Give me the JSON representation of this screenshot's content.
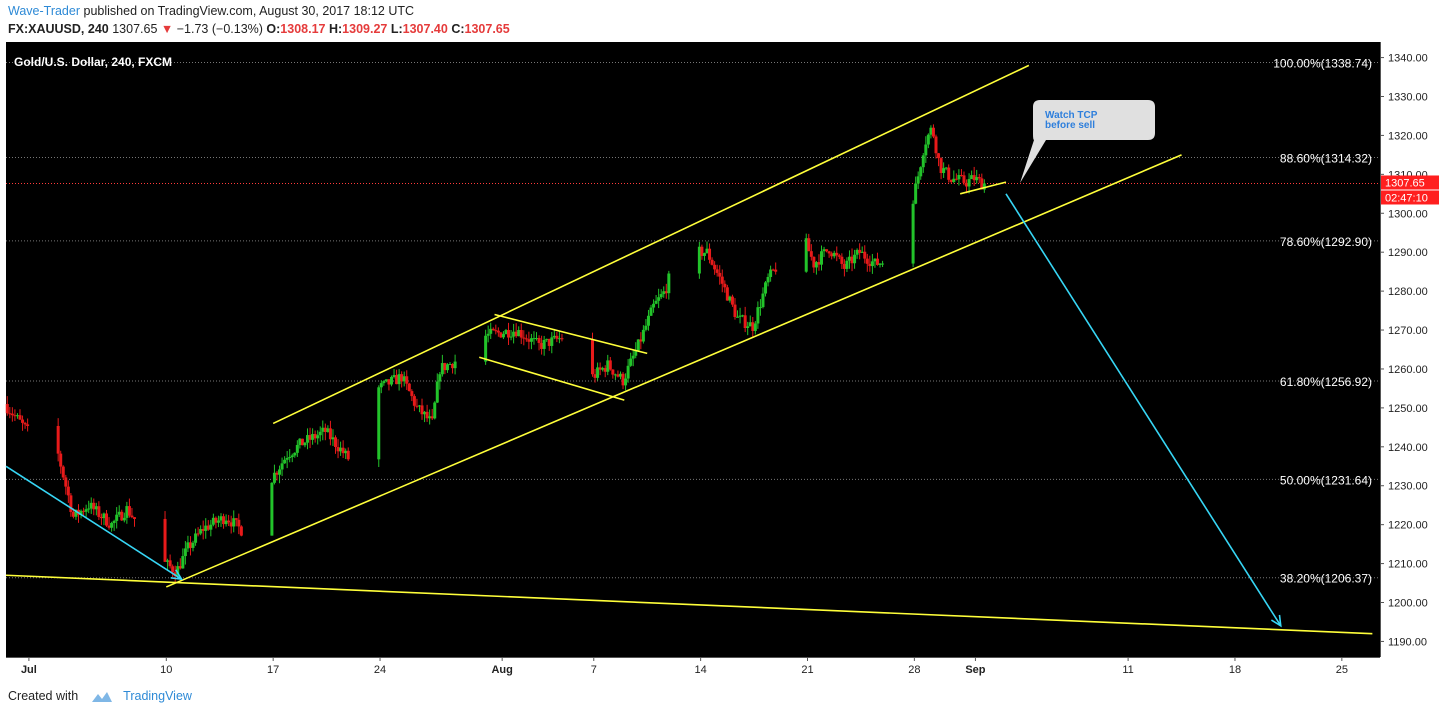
{
  "header": {
    "author": "Wave-Trader",
    "published_text": "published on TradingView.com, August 30, 2017 18:12 UTC",
    "symbol": "FX:XAUUSD, 240",
    "last": "1307.65",
    "change_arrow": "▼",
    "change": "−1.73 (−0.13%)",
    "o_label": "O:",
    "o_value": "1308.17",
    "h_label": "H:",
    "h_value": "1309.27",
    "l_label": "L:",
    "l_value": "1307.40",
    "c_label": "C:",
    "c_value": "1307.65"
  },
  "footer": {
    "created_with": "Created with",
    "brand": "TradingView"
  },
  "chart_data": {
    "type": "candlestick",
    "title": "Gold/U.S. Dollar, 240, FXCM",
    "background": "#000000",
    "colors": {
      "up": "#22c32a",
      "down": "#e81a1a",
      "trendline": "#ffff3a",
      "arrow": "#37d6f5",
      "fib_line": "#777777",
      "price_line": "#ff3b3b",
      "price_tag": "#ff1f1f"
    },
    "y_axis": {
      "range": [
        1186,
        1344
      ],
      "ticks": [
        1190,
        1200,
        1210,
        1220,
        1230,
        1240,
        1250,
        1260,
        1270,
        1280,
        1290,
        1300,
        1310,
        1320,
        1330,
        1340
      ],
      "tick_labels": [
        "1190.00",
        "1200.00",
        "1210.00",
        "1220.00",
        "1230.00",
        "1240.00",
        "1250.00",
        "1260.00",
        "1270.00",
        "1280.00",
        "1290.00",
        "1300.00",
        "1310.00",
        "1320.00",
        "1330.00",
        "1340.00"
      ],
      "position": "right"
    },
    "x_axis": {
      "range": [
        "2017-06-29T12:00",
        "2017-09-27T12:00"
      ],
      "ticks": [
        "2017-07-01",
        "2017-07-10",
        "2017-07-17",
        "2017-07-24",
        "2017-08-01",
        "2017-08-07",
        "2017-08-14",
        "2017-08-21",
        "2017-08-28",
        "2017-09-01",
        "2017-09-11",
        "2017-09-18",
        "2017-09-25"
      ],
      "tick_labels": [
        "Jul",
        "10",
        "17",
        "24",
        "Aug",
        "7",
        "14",
        "21",
        "28",
        "Sep",
        "11",
        "18",
        "25"
      ],
      "bold_labels": [
        "Jul",
        "Aug",
        "Sep"
      ]
    },
    "fib_levels": [
      {
        "label": "100.00%(1338.74)",
        "value": 1338.74
      },
      {
        "label": "88.60%(1314.32)",
        "value": 1314.32
      },
      {
        "label": "78.60%(1292.90)",
        "value": 1292.9
      },
      {
        "label": "61.80%(1256.92)",
        "value": 1256.92
      },
      {
        "label": "50.00%(1231.64)",
        "value": 1231.64
      },
      {
        "label": "38.20%(1206.37)",
        "value": 1206.37
      }
    ],
    "last_price": {
      "value": 1307.65,
      "label": "1307.65",
      "countdown": "02:47:10"
    },
    "price_path": [
      {
        "x": "2017-06-29T12:00",
        "y": 1251
      },
      {
        "x": "2017-07-01T00:00",
        "y": 1244
      },
      {
        "x": "2017-07-03T00:00",
        "y": 1238
      },
      {
        "x": "2017-07-04T00:00",
        "y": 1222
      },
      {
        "x": "2017-07-05T00:00",
        "y": 1225
      },
      {
        "x": "2017-07-06T12:00",
        "y": 1220
      },
      {
        "x": "2017-07-07T12:00",
        "y": 1224
      },
      {
        "x": "2017-07-08T12:00",
        "y": 1219
      },
      {
        "x": "2017-07-10T00:00",
        "y": 1210
      },
      {
        "x": "2017-07-10T18:00",
        "y": 1208
      },
      {
        "x": "2017-07-11T12:00",
        "y": 1214
      },
      {
        "x": "2017-07-12T12:00",
        "y": 1219
      },
      {
        "x": "2017-07-14T00:00",
        "y": 1222
      },
      {
        "x": "2017-07-15T12:00",
        "y": 1217
      },
      {
        "x": "2017-07-16T00:00",
        "y": 1228
      },
      {
        "x": "2017-07-17T00:00",
        "y": 1232
      },
      {
        "x": "2017-07-18T00:00",
        "y": 1238
      },
      {
        "x": "2017-07-19T00:00",
        "y": 1241
      },
      {
        "x": "2017-07-20T12:00",
        "y": 1244
      },
      {
        "x": "2017-07-22T00:00",
        "y": 1237
      },
      {
        "x": "2017-07-23T00:00",
        "y": 1250
      },
      {
        "x": "2017-07-24T00:00",
        "y": 1255
      },
      {
        "x": "2017-07-25T12:00",
        "y": 1258
      },
      {
        "x": "2017-07-26T12:00",
        "y": 1250
      },
      {
        "x": "2017-07-27T12:00",
        "y": 1246
      },
      {
        "x": "2017-07-28T00:00",
        "y": 1260
      },
      {
        "x": "2017-07-29T12:00",
        "y": 1263
      },
      {
        "x": "2017-07-30T12:00",
        "y": 1268
      },
      {
        "x": "2017-07-31T12:00",
        "y": 1269
      },
      {
        "x": "2017-08-02T00:00",
        "y": 1270
      },
      {
        "x": "2017-08-03T12:00",
        "y": 1266
      },
      {
        "x": "2017-08-05T00:00",
        "y": 1268
      },
      {
        "x": "2017-08-06T00:00",
        "y": 1259
      },
      {
        "x": "2017-08-07T00:00",
        "y": 1258
      },
      {
        "x": "2017-08-08T00:00",
        "y": 1261
      },
      {
        "x": "2017-08-09T00:00",
        "y": 1257
      },
      {
        "x": "2017-08-10T00:00",
        "y": 1266
      },
      {
        "x": "2017-08-11T00:00",
        "y": 1276
      },
      {
        "x": "2017-08-11T18:00",
        "y": 1280
      },
      {
        "x": "2017-08-12T12:00",
        "y": 1289
      },
      {
        "x": "2017-08-13T12:00",
        "y": 1290
      },
      {
        "x": "2017-08-14T12:00",
        "y": 1290
      },
      {
        "x": "2017-08-15T12:00",
        "y": 1282
      },
      {
        "x": "2017-08-16T12:00",
        "y": 1273
      },
      {
        "x": "2017-08-17T12:00",
        "y": 1271
      },
      {
        "x": "2017-08-18T12:00",
        "y": 1283
      },
      {
        "x": "2017-08-19T12:00",
        "y": 1289
      },
      {
        "x": "2017-08-20T12:00",
        "y": 1297
      },
      {
        "x": "2017-08-21T12:00",
        "y": 1287
      },
      {
        "x": "2017-08-22T12:00",
        "y": 1291
      },
      {
        "x": "2017-08-23T12:00",
        "y": 1286
      },
      {
        "x": "2017-08-24T12:00",
        "y": 1290
      },
      {
        "x": "2017-08-25T12:00",
        "y": 1287
      },
      {
        "x": "2017-08-26T12:00",
        "y": 1288
      },
      {
        "x": "2017-08-27T12:00",
        "y": 1296
      },
      {
        "x": "2017-08-28T06:00",
        "y": 1308
      },
      {
        "x": "2017-08-28T18:00",
        "y": 1318
      },
      {
        "x": "2017-08-29T06:00",
        "y": 1322
      },
      {
        "x": "2017-08-29T18:00",
        "y": 1312
      },
      {
        "x": "2017-08-30T12:00",
        "y": 1309
      },
      {
        "x": "2017-08-31T12:00",
        "y": 1308
      },
      {
        "x": "2017-09-01T00:00",
        "y": 1309
      },
      {
        "x": "2017-09-01T12:00",
        "y": 1307.65
      }
    ],
    "trendlines": [
      {
        "name": "channel-upper",
        "from": {
          "x": "2017-07-17T00:00",
          "y": 1246
        },
        "to": {
          "x": "2017-09-04T12:00",
          "y": 1338
        }
      },
      {
        "name": "channel-lower",
        "from": {
          "x": "2017-07-10T00:00",
          "y": 1204
        },
        "to": {
          "x": "2017-09-14T12:00",
          "y": 1315
        }
      },
      {
        "name": "flag-upper",
        "from": {
          "x": "2017-07-31T12:00",
          "y": 1274
        },
        "to": {
          "x": "2017-08-10T12:00",
          "y": 1264
        }
      },
      {
        "name": "flag-lower",
        "from": {
          "x": "2017-07-30T12:00",
          "y": 1263
        },
        "to": {
          "x": "2017-08-09T00:00",
          "y": 1252
        }
      },
      {
        "name": "long-support",
        "from": {
          "x": "2017-06-29T12:00",
          "y": 1207
        },
        "to": {
          "x": "2017-09-27T00:00",
          "y": 1192
        }
      },
      {
        "name": "small-support",
        "from": {
          "x": "2017-08-31T00:00",
          "y": 1305
        },
        "to": {
          "x": "2017-09-03T00:00",
          "y": 1308
        }
      }
    ],
    "arrows": [
      {
        "name": "down-arrow-left",
        "from": {
          "x": "2017-06-29T12:00",
          "y": 1235
        },
        "to": {
          "x": "2017-07-11T00:00",
          "y": 1206
        }
      },
      {
        "name": "down-arrow-right",
        "from": {
          "x": "2017-09-03T00:00",
          "y": 1305
        },
        "to": {
          "x": "2017-09-21T00:00",
          "y": 1194
        }
      }
    ],
    "annotation": {
      "text_line1": "Watch TCP",
      "text_line2": "before sell"
    }
  }
}
